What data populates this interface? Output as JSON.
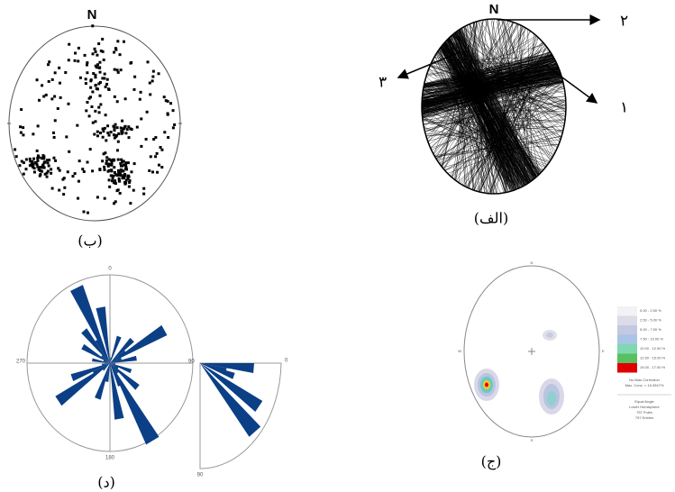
{
  "panels": {
    "b": {
      "north": "N",
      "label": "(ب)"
    },
    "alef": {
      "north": "N",
      "label": "(الف)",
      "arrows": [
        "۱",
        "۲",
        "۳"
      ]
    },
    "dal": {
      "label": "(د)",
      "rose_labels": [
        "0",
        "90",
        "180",
        "270"
      ],
      "quarter_labels": [
        "0",
        "90"
      ]
    },
    "jim": {
      "label": "(ج)",
      "directions": [
        "N",
        "E",
        "S",
        "W"
      ],
      "legend": [
        "0.00 - 2.50 %",
        "2.50 - 5.00 %",
        "5.00 - 7.50 %",
        "7.50 - 10.00 %",
        "10.00 - 12.50 %",
        "12.50 - 15.00 %",
        "15.00 - 17.50 %"
      ],
      "notes": [
        "No Bias Correction",
        "Max. Conc. = 15.0947%"
      ],
      "info": [
        "Equal Angle",
        "Lower Hemisphere",
        "757 Poles",
        "757 Entries"
      ]
    }
  }
}
